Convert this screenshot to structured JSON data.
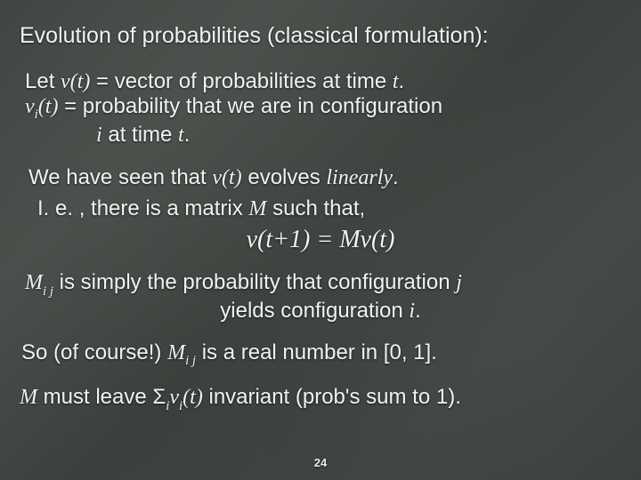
{
  "slide": {
    "title": "Evolution of probabilities (classical formulation):",
    "let_prefix": "Let ",
    "vt": "v(t)",
    "let_suffix": " = vector of probabilities at time ",
    "t": "t",
    "period": ".",
    "vit_v": "v",
    "vit_sub": "i",
    "vit_paren": "(t)",
    "vit_suffix": " = probability that we are in configuration",
    "i_line_prefix": "",
    "i": "i",
    "i_line_mid": " at time ",
    "seen_prefix": "We have seen that ",
    "seen_suffix": " evolves ",
    "linearly": "linearly",
    "ie_prefix": "I. e. , there is a matrix ",
    "M": "M",
    "ie_suffix": " such that,",
    "equation": "v(t+1) = Mv(t)",
    "Mij_sub": "i j",
    "mij_suffix1": "  is simply the probability that configuration ",
    "j": "j",
    "mij_line2_prefix": "yields configuration ",
    "so_prefix": "So (of course!) ",
    "so_suffix": " is a real number in [0, 1].",
    "mleave_prefix": "",
    "mleave_mid1": " must leave ",
    "sigma": "Σ",
    "sigma_sub": "i",
    "mleave_v": "v",
    "mleave_vsub": "i",
    "mleave_paren": "(t)",
    "mleave_suffix": " invariant (prob's sum to 1).",
    "page_number": "24"
  }
}
